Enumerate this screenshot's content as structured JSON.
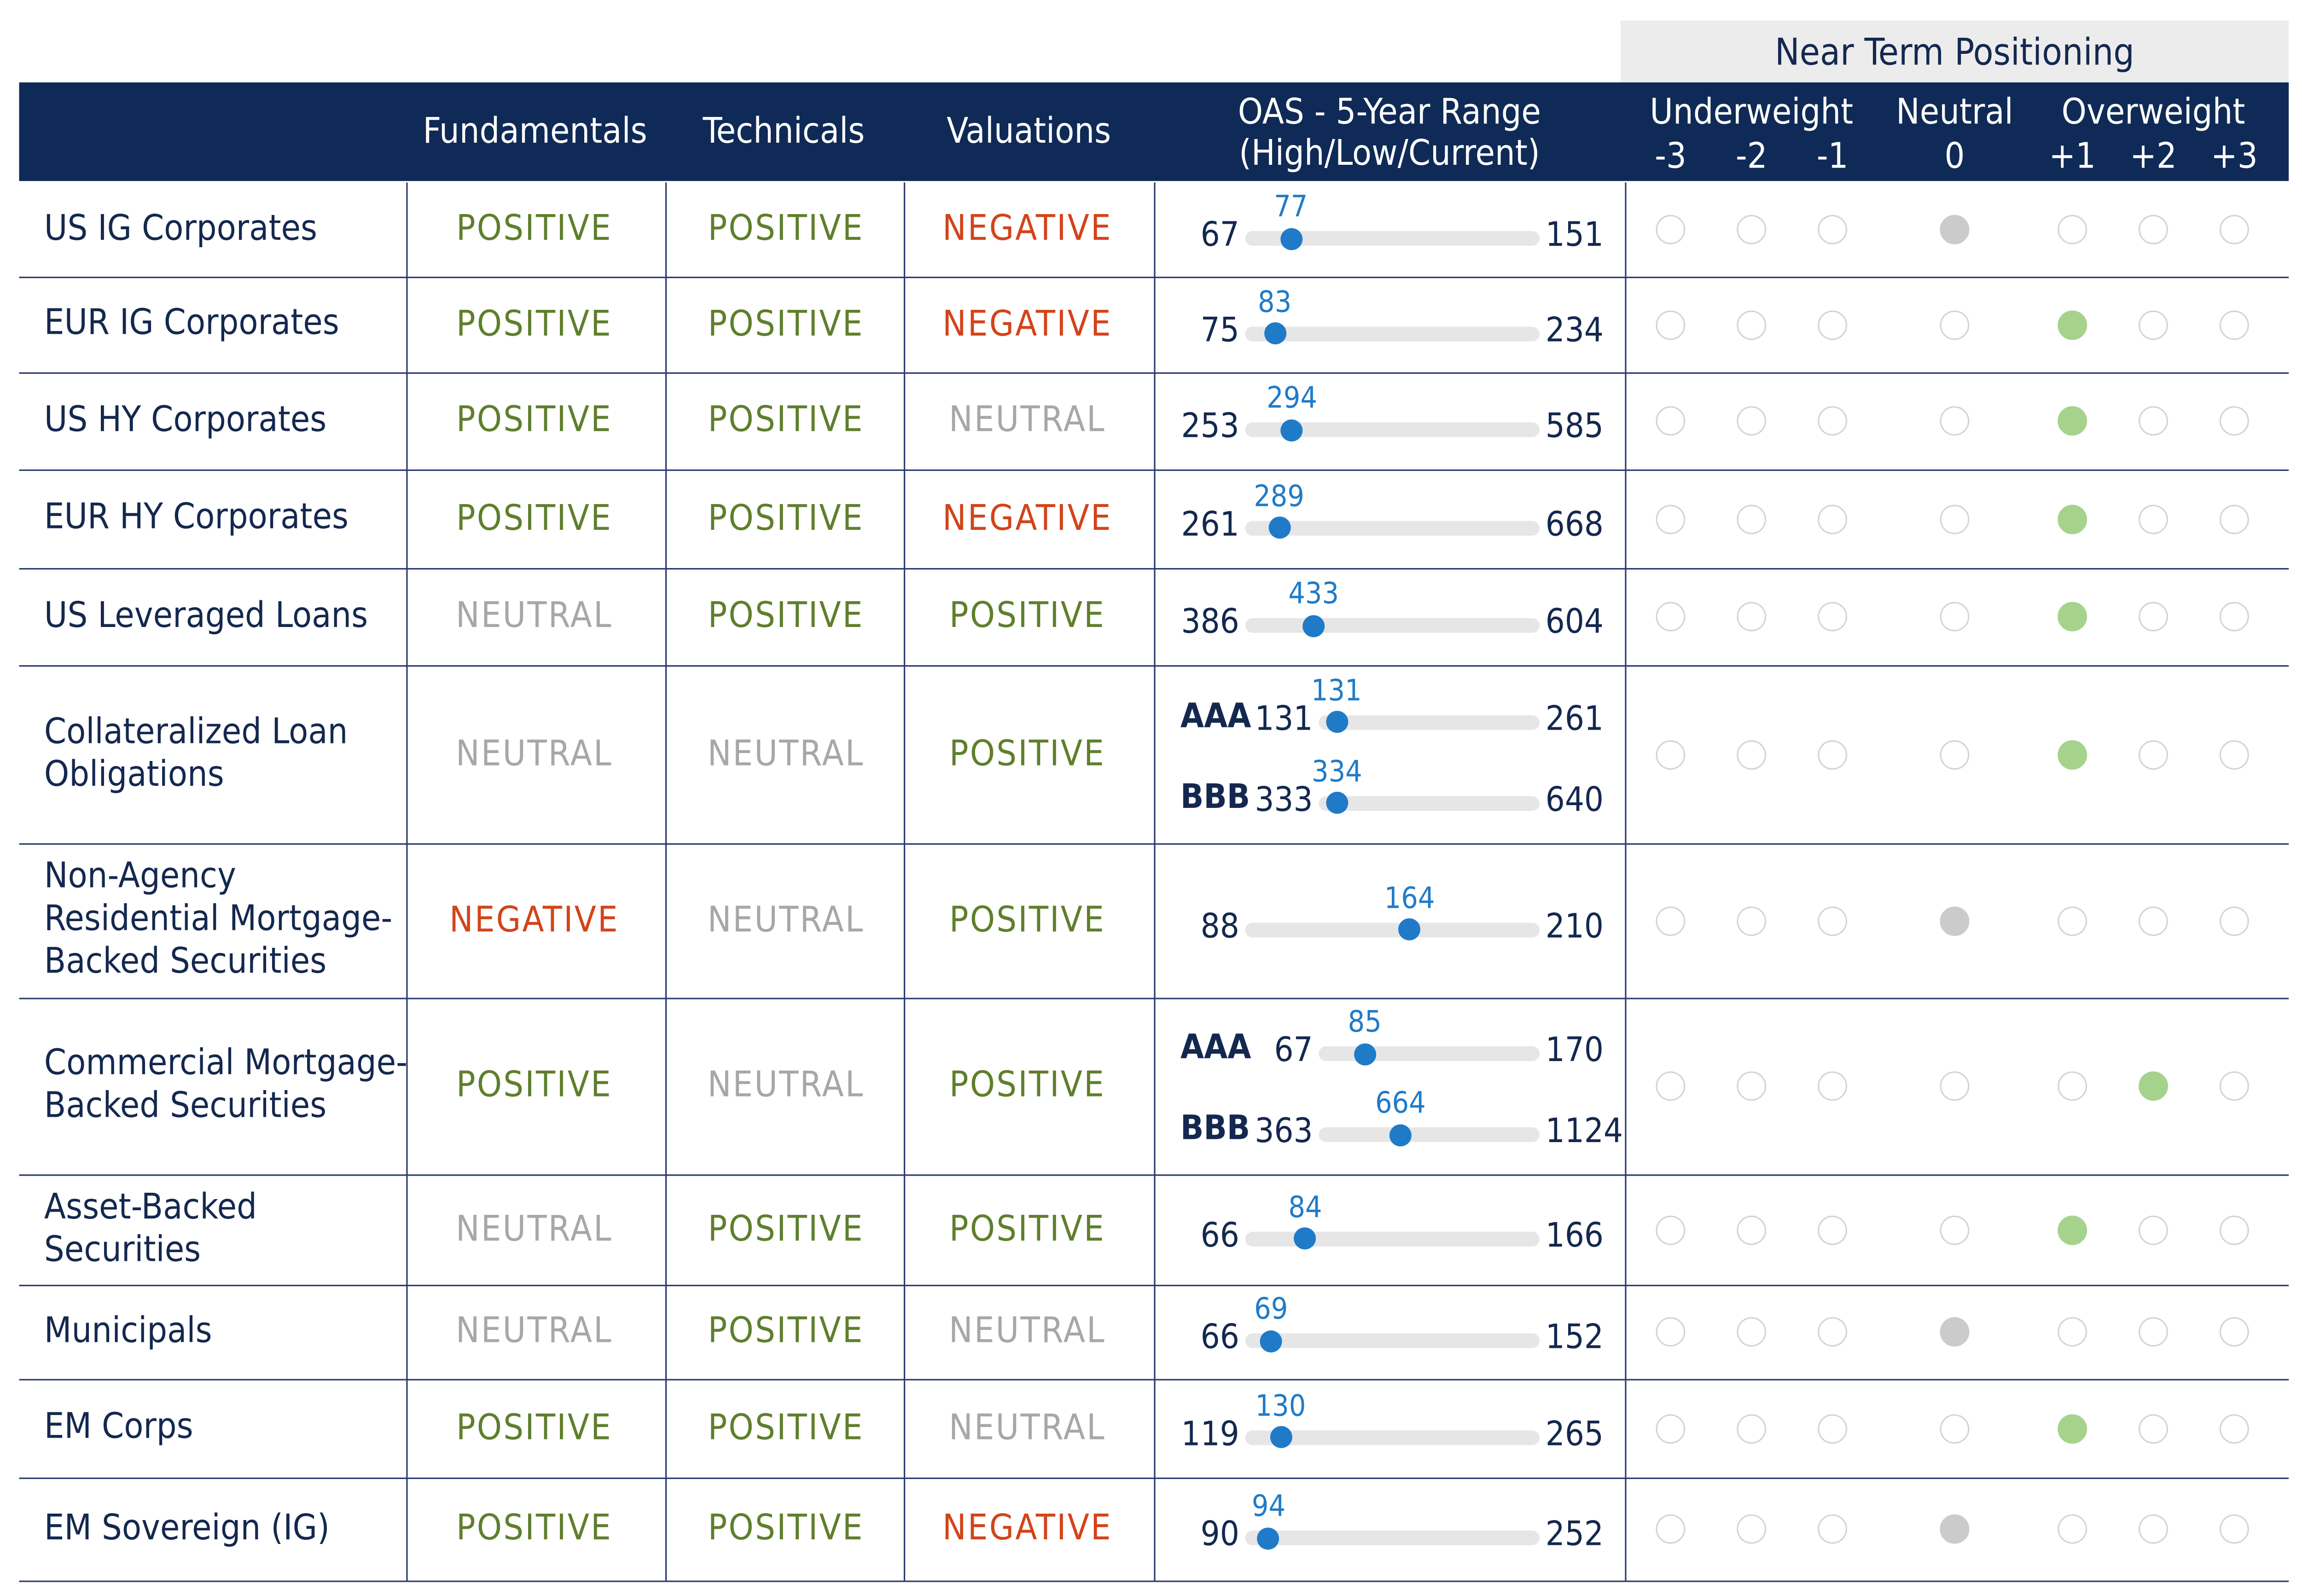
{
  "header": {
    "near_term_title": "Near Term Positioning",
    "col_fundamentals": "Fundamentals",
    "col_technicals": "Technicals",
    "col_valuations": "Valuations",
    "col_oas_line1": "OAS - 5-Year Range",
    "col_oas_line2": "(High/Low/Current)",
    "underweight": "Underweight",
    "neutral": "Neutral",
    "overweight": "Overweight",
    "scale": [
      "-3",
      "-2",
      "-1",
      "0",
      "+1",
      "+2",
      "+3"
    ]
  },
  "colors": {
    "positive": "#5f7f2c",
    "negative": "#d2441a",
    "neutral_text": "#a7a7a7",
    "header_bg": "#0f2a56",
    "current_marker": "#1f7bc8",
    "neutral_fill": "#cbcbcb",
    "overweight_fill": "#a5d38c"
  },
  "chart_data": {
    "type": "table",
    "columns": [
      "Fundamentals",
      "Technicals",
      "Valuations",
      "OAS - 5-Year Range (High/Low/Current)",
      "Near Term Positioning"
    ],
    "rows": [
      {
        "sector": "US IG Corporates",
        "fundamentals": "POSITIVE",
        "technicals": "POSITIVE",
        "valuations": "NEGATIVE",
        "oas": [
          {
            "tier": "",
            "low": 67,
            "high": 151,
            "current": 77
          }
        ],
        "positioning": 0
      },
      {
        "sector": "EUR IG Corporates",
        "fundamentals": "POSITIVE",
        "technicals": "POSITIVE",
        "valuations": "NEGATIVE",
        "oas": [
          {
            "tier": "",
            "low": 75,
            "high": 234,
            "current": 83
          }
        ],
        "positioning": 1
      },
      {
        "sector": "US HY Corporates",
        "fundamentals": "POSITIVE",
        "technicals": "POSITIVE",
        "valuations": "NEUTRAL",
        "oas": [
          {
            "tier": "",
            "low": 253,
            "high": 585,
            "current": 294
          }
        ],
        "positioning": 1
      },
      {
        "sector": "EUR HY Corporates",
        "fundamentals": "POSITIVE",
        "technicals": "POSITIVE",
        "valuations": "NEGATIVE",
        "oas": [
          {
            "tier": "",
            "low": 261,
            "high": 668,
            "current": 289
          }
        ],
        "positioning": 1
      },
      {
        "sector": "US Leveraged Loans",
        "fundamentals": "NEUTRAL",
        "technicals": "POSITIVE",
        "valuations": "POSITIVE",
        "oas": [
          {
            "tier": "",
            "low": 386,
            "high": 604,
            "current": 433
          }
        ],
        "positioning": 1
      },
      {
        "sector": "Collateralized Loan\nObligations",
        "fundamentals": "NEUTRAL",
        "technicals": "NEUTRAL",
        "valuations": "POSITIVE",
        "oas": [
          {
            "tier": "AAA",
            "low": 131,
            "high": 261,
            "current": 131
          },
          {
            "tier": "BBB",
            "low": 333,
            "high": 640,
            "current": 334
          }
        ],
        "positioning": 1
      },
      {
        "sector": "Non-Agency\nResidential Mortgage-\nBacked Securities",
        "fundamentals": "NEGATIVE",
        "technicals": "NEUTRAL",
        "valuations": "POSITIVE",
        "oas": [
          {
            "tier": "",
            "low": 88,
            "high": 210,
            "current": 164
          }
        ],
        "positioning": 0
      },
      {
        "sector": "Commercial Mortgage-\nBacked Securities",
        "fundamentals": "POSITIVE",
        "technicals": "NEUTRAL",
        "valuations": "POSITIVE",
        "oas": [
          {
            "tier": "AAA",
            "low": 67,
            "high": 170,
            "current": 85
          },
          {
            "tier": "BBB",
            "low": 363,
            "high": 1124,
            "current": 664
          }
        ],
        "positioning": 2
      },
      {
        "sector": "Asset-Backed\nSecurities",
        "fundamentals": "NEUTRAL",
        "technicals": "POSITIVE",
        "valuations": "POSITIVE",
        "oas": [
          {
            "tier": "",
            "low": 66,
            "high": 166,
            "current": 84
          }
        ],
        "positioning": 1
      },
      {
        "sector": "Municipals",
        "fundamentals": "NEUTRAL",
        "technicals": "POSITIVE",
        "valuations": "NEUTRAL",
        "oas": [
          {
            "tier": "",
            "low": 66,
            "high": 152,
            "current": 69
          }
        ],
        "positioning": 0
      },
      {
        "sector": "EM Corps",
        "fundamentals": "POSITIVE",
        "technicals": "POSITIVE",
        "valuations": "NEUTRAL",
        "oas": [
          {
            "tier": "",
            "low": 119,
            "high": 265,
            "current": 130
          }
        ],
        "positioning": 1
      },
      {
        "sector": "EM Sovereign (IG)",
        "fundamentals": "POSITIVE",
        "technicals": "POSITIVE",
        "valuations": "NEGATIVE",
        "oas": [
          {
            "tier": "",
            "low": 90,
            "high": 252,
            "current": 94
          }
        ],
        "positioning": 0
      }
    ]
  }
}
